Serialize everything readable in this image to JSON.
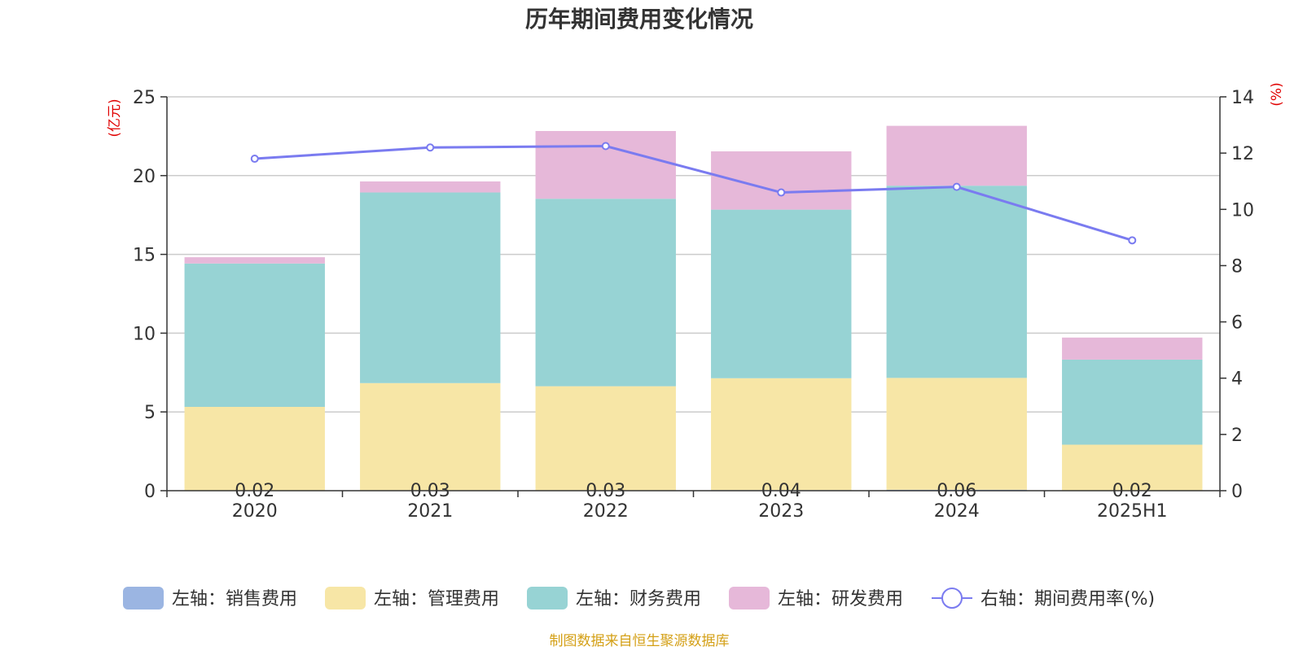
{
  "chart_data": {
    "type": "bar",
    "title": "历年期间费用变化情况",
    "categories": [
      "2020",
      "2021",
      "2022",
      "2023",
      "2024",
      "2025H1"
    ],
    "left_axis": {
      "unit": "(亿元)",
      "ylim": [
        0,
        25
      ],
      "ticks": [
        0,
        5,
        10,
        15,
        20,
        25
      ]
    },
    "right_axis": {
      "unit": "(%)",
      "ylim": [
        0,
        14
      ],
      "ticks": [
        0,
        2,
        4,
        6,
        8,
        10,
        12,
        14
      ]
    },
    "grid": true,
    "legend_position": "bottom",
    "series": [
      {
        "name": "左轴：销售费用",
        "axis": "left",
        "kind": "bar",
        "color": "#9bb5e2",
        "values": [
          0.02,
          0.03,
          0.03,
          0.04,
          0.06,
          0.02
        ],
        "labels": [
          "0.02",
          "0.03",
          "0.03",
          "0.04",
          "0.06",
          "0.02"
        ]
      },
      {
        "name": "左轴：管理费用",
        "axis": "left",
        "kind": "bar",
        "color": "#f7e6a6",
        "values": [
          5.3,
          6.8,
          6.6,
          7.1,
          7.1,
          2.9
        ]
      },
      {
        "name": "左轴：财务费用",
        "axis": "left",
        "kind": "bar",
        "color": "#97d3d4",
        "values": [
          9.1,
          12.1,
          11.9,
          10.7,
          12.2,
          5.4
        ]
      },
      {
        "name": "左轴：研发费用",
        "axis": "left",
        "kind": "bar",
        "color": "#e6b8d9",
        "values": [
          0.4,
          0.7,
          4.3,
          3.7,
          3.8,
          1.4
        ]
      },
      {
        "name": "右轴：期间费用率(%)",
        "axis": "right",
        "kind": "line",
        "color": "#7a7bf0",
        "values": [
          11.8,
          12.2,
          12.25,
          10.6,
          10.8,
          8.9
        ]
      }
    ]
  },
  "source_note": "制图数据来自恒生聚源数据库"
}
